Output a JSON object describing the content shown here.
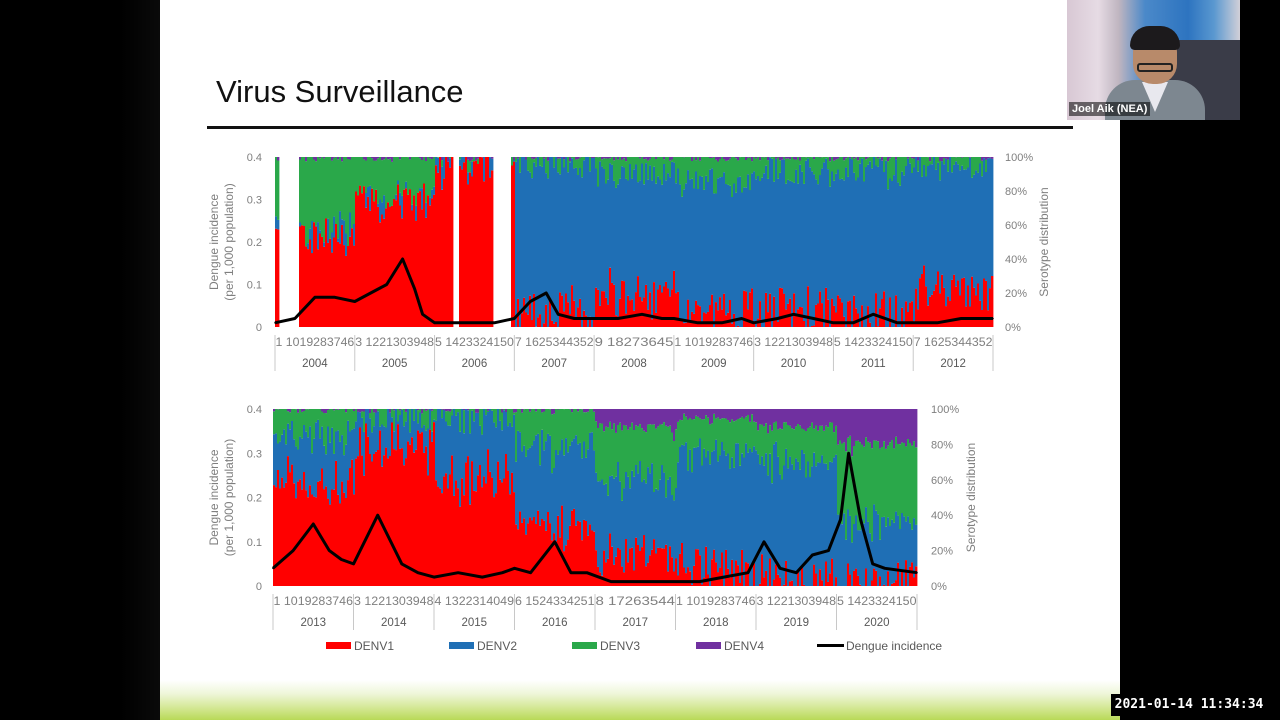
{
  "slide": {
    "title": "Virus Surveillance"
  },
  "video": {
    "participant_name": "Joel Aik (NEA)"
  },
  "timestamp": "2021-01-14 11:34:34",
  "colors": {
    "DENV1": "#ff0000",
    "DENV2": "#1f6fb5",
    "DENV3": "#2aa84a",
    "DENV4": "#7030a0",
    "incidence": "#000000"
  },
  "chart_data": [
    {
      "type": "area",
      "ylabel": "Dengue incidence\n(per 1,000 population)",
      "y2label": "Serotype distribution",
      "ylim": [
        0,
        0.4
      ],
      "y_ticks": [
        "0",
        "0.1",
        "0.2",
        "0.3",
        "0.4"
      ],
      "y2_ticks": [
        "0%",
        "20%",
        "40%",
        "60%",
        "80%",
        "100%"
      ],
      "years": [
        "2004",
        "2005",
        "2006",
        "2007",
        "2008",
        "2009",
        "2010",
        "2011",
        "2012"
      ],
      "week_labels": [
        "1 1019283746",
        "3 1221303948",
        "5 1423324150",
        "7 1625344352",
        "9 18273645",
        "1 1019283746",
        "3 1221303948",
        "5 1423324150",
        "7 1625344352"
      ],
      "serotype_share_by_year": [
        {
          "year": "2004",
          "DENV1": 0.55,
          "DENV2": 0.05,
          "DENV3": 0.4,
          "DENV4": 0.0
        },
        {
          "year": "2005",
          "DENV1": 0.75,
          "DENV2": 0.02,
          "DENV3": 0.23,
          "DENV4": 0.0
        },
        {
          "year": "2006",
          "DENV1": 0.97,
          "DENV2": 0.03,
          "DENV3": 0.0,
          "DENV4": 0.0
        },
        {
          "year": "2007",
          "DENV1": 0.1,
          "DENV2": 0.86,
          "DENV3": 0.04,
          "DENV4": 0.0
        },
        {
          "year": "2008",
          "DENV1": 0.18,
          "DENV2": 0.72,
          "DENV3": 0.1,
          "DENV4": 0.0
        },
        {
          "year": "2009",
          "DENV1": 0.1,
          "DENV2": 0.75,
          "DENV3": 0.15,
          "DENV4": 0.0
        },
        {
          "year": "2010",
          "DENV1": 0.1,
          "DENV2": 0.82,
          "DENV3": 0.08,
          "DENV4": 0.0
        },
        {
          "year": "2011",
          "DENV1": 0.08,
          "DENV2": 0.84,
          "DENV3": 0.08,
          "DENV4": 0.0
        },
        {
          "year": "2012",
          "DENV1": 0.22,
          "DENV2": 0.72,
          "DENV3": 0.06,
          "DENV4": 0.0
        }
      ],
      "incidence_series": {
        "name": "Dengue incidence",
        "x": [
          0,
          0.25,
          0.5,
          0.75,
          1,
          1.2,
          1.4,
          1.6,
          1.75,
          1.85,
          2,
          2.25,
          2.5,
          2.75,
          3,
          3.2,
          3.4,
          3.55,
          3.75,
          4,
          4.3,
          4.6,
          4.85,
          5,
          5.3,
          5.6,
          5.85,
          6,
          6.3,
          6.5,
          6.75,
          7,
          7.25,
          7.5,
          7.8,
          8,
          8.3,
          8.6,
          9
        ],
        "values": [
          0.01,
          0.02,
          0.07,
          0.07,
          0.06,
          0.08,
          0.1,
          0.16,
          0.09,
          0.03,
          0.01,
          0.01,
          0.01,
          0.01,
          0.02,
          0.06,
          0.08,
          0.03,
          0.02,
          0.02,
          0.02,
          0.03,
          0.02,
          0.02,
          0.01,
          0.01,
          0.02,
          0.01,
          0.02,
          0.03,
          0.02,
          0.01,
          0.01,
          0.03,
          0.01,
          0.01,
          0.01,
          0.02,
          0.02
        ]
      }
    },
    {
      "type": "area",
      "ylabel": "Dengue incidence\n(per 1,000 population)",
      "y2label": "Serotype distribution",
      "ylim": [
        0,
        0.4
      ],
      "y_ticks": [
        "0",
        "0.1",
        "0.2",
        "0.3",
        "0.4"
      ],
      "y2_ticks": [
        "0%",
        "20%",
        "40%",
        "60%",
        "80%",
        "100%"
      ],
      "years": [
        "2013",
        "2014",
        "2015",
        "2016",
        "2017",
        "2018",
        "2019",
        "2020"
      ],
      "week_labels": [
        "1 1019283746",
        "3 1221303948",
        "4 1322314049",
        "6 1524334251",
        "8 17263544",
        "1 1019283746",
        "3 1221303948",
        "5 1423324150"
      ],
      "serotype_share_by_year": [
        {
          "year": "2013",
          "DENV1": 0.55,
          "DENV2": 0.3,
          "DENV3": 0.15,
          "DENV4": 0.0
        },
        {
          "year": "2014",
          "DENV1": 0.8,
          "DENV2": 0.15,
          "DENV3": 0.05,
          "DENV4": 0.0
        },
        {
          "year": "2015",
          "DENV1": 0.6,
          "DENV2": 0.35,
          "DENV3": 0.05,
          "DENV4": 0.0
        },
        {
          "year": "2016",
          "DENV1": 0.35,
          "DENV2": 0.45,
          "DENV3": 0.2,
          "DENV4": 0.0
        },
        {
          "year": "2017",
          "DENV1": 0.2,
          "DENV2": 0.4,
          "DENV3": 0.3,
          "DENV4": 0.1
        },
        {
          "year": "2018",
          "DENV1": 0.1,
          "DENV2": 0.65,
          "DENV3": 0.2,
          "DENV4": 0.05
        },
        {
          "year": "2019",
          "DENV1": 0.05,
          "DENV2": 0.65,
          "DENV3": 0.2,
          "DENV4": 0.1
        },
        {
          "year": "2020",
          "DENV1": 0.02,
          "DENV2": 0.33,
          "DENV3": 0.45,
          "DENV4": 0.2
        }
      ],
      "incidence_series": {
        "name": "Dengue incidence",
        "x": [
          0,
          0.25,
          0.5,
          0.7,
          0.85,
          1,
          1.3,
          1.6,
          1.8,
          2,
          2.3,
          2.6,
          2.85,
          3,
          3.2,
          3.5,
          3.7,
          3.9,
          4.2,
          4.5,
          4.8,
          5,
          5.3,
          5.6,
          5.9,
          6.1,
          6.3,
          6.5,
          6.7,
          6.9,
          7.05,
          7.15,
          7.3,
          7.45,
          7.6,
          8
        ],
        "values": [
          0.04,
          0.08,
          0.14,
          0.08,
          0.06,
          0.05,
          0.16,
          0.05,
          0.03,
          0.02,
          0.03,
          0.02,
          0.03,
          0.04,
          0.03,
          0.1,
          0.03,
          0.03,
          0.01,
          0.01,
          0.01,
          0.01,
          0.01,
          0.02,
          0.03,
          0.1,
          0.04,
          0.03,
          0.07,
          0.08,
          0.15,
          0.3,
          0.15,
          0.05,
          0.04,
          0.03
        ]
      }
    }
  ],
  "legend": [
    "DENV1",
    "DENV2",
    "DENV3",
    "DENV4",
    "Dengue incidence"
  ]
}
